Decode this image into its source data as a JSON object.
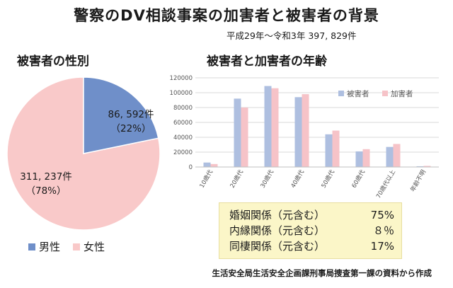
{
  "title": "警察のDV相談事案の加害者と被害者の背景",
  "period": "平成29年～令和3年  397, 829件",
  "colors": {
    "male": "#6f8fc9",
    "female": "#f9c9c9",
    "victim": "#aebfe0",
    "perpetrator": "#f6c3c8",
    "box": "#fbf6c8"
  },
  "pie_chart": {
    "heading": "被害者の性別",
    "male_count": "86, 592件",
    "male_pct": "（22%）",
    "female_count": "311, 237件",
    "female_pct": "（78%）",
    "legend_male": "男性",
    "legend_female": "女性"
  },
  "bar_chart": {
    "heading": "被害者と加害者の年齢"
  },
  "chart_data": [
    {
      "type": "pie",
      "title": "被害者の性別",
      "categories": [
        "男性",
        "女性"
      ],
      "values": [
        86592,
        311237
      ],
      "percent": [
        22,
        78
      ],
      "legend_position": "bottom"
    },
    {
      "type": "bar",
      "title": "被害者と加害者の年齢",
      "categories": [
        "10歳代",
        "20歳代",
        "30歳代",
        "40歳代",
        "50歳代",
        "60歳代",
        "70歳代以上",
        "年齢不明"
      ],
      "series": [
        {
          "name": "被害者",
          "values": [
            6000,
            92000,
            109000,
            94000,
            44000,
            21000,
            27000,
            1000
          ]
        },
        {
          "name": "加害者",
          "values": [
            4000,
            80000,
            106000,
            98000,
            49000,
            24000,
            31000,
            1500
          ]
        }
      ],
      "yticks": [
        "0",
        "20000",
        "40000",
        "60000",
        "80000",
        "100000",
        "120000"
      ],
      "ylim": [
        0,
        120000
      ],
      "grid": true,
      "legend_position": "top-right"
    }
  ],
  "relations": [
    {
      "label": "婚姻関係（元含む）",
      "pct": "75%"
    },
    {
      "label": "内縁関係（元含む）",
      "pct": "８％"
    },
    {
      "label": "同棲関係（元含む）",
      "pct": "17%"
    }
  ],
  "source": "生活安全局生活安全企画課刑事局捜査第一課の資料から作成"
}
